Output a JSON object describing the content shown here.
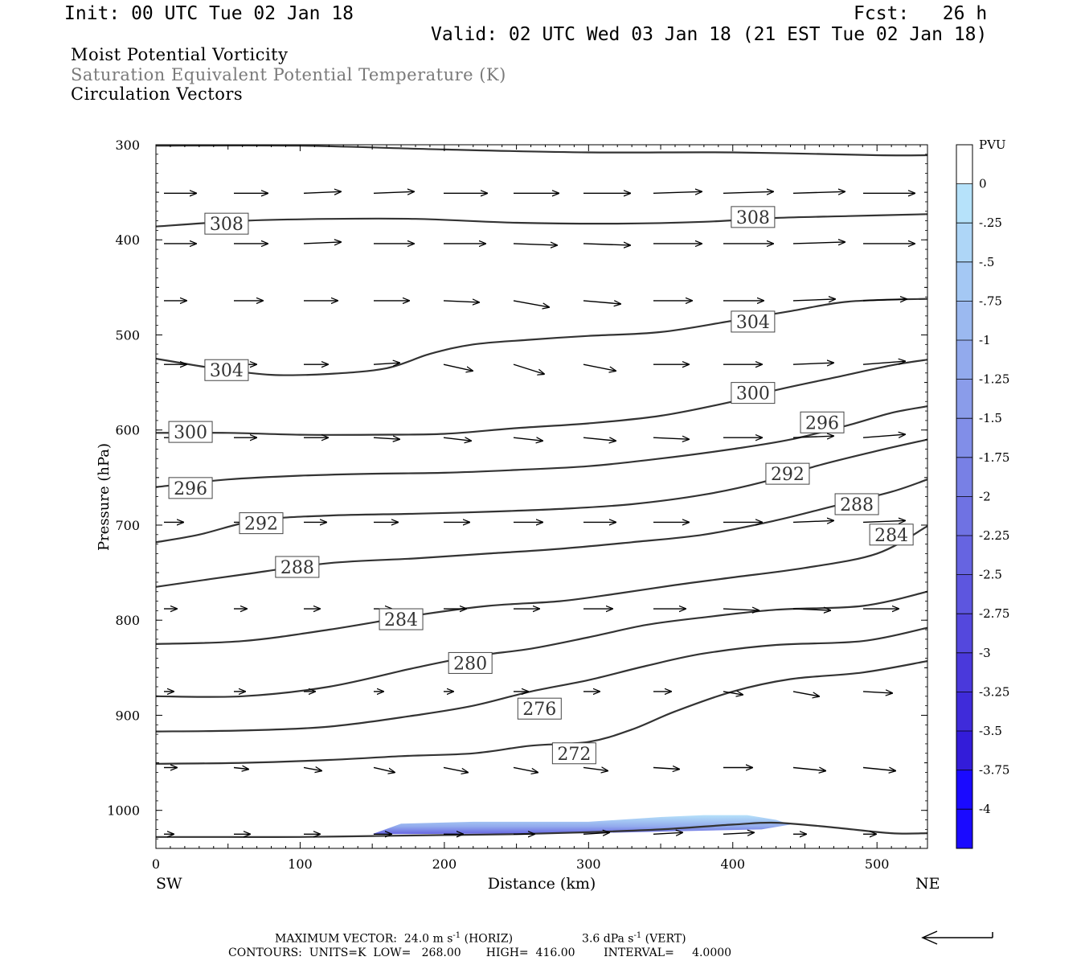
{
  "header": {
    "init": "Init: 00 UTC Tue 02 Jan 18",
    "fcst": "Fcst:   26 h",
    "valid": "Valid: 02 UTC Wed 03 Jan 18 (21 EST Tue 02 Jan 18)",
    "title1": "Moist Potential Vorticity",
    "title2": "Saturation Equivalent Potential Temperature (K)",
    "title3": "Circulation Vectors"
  },
  "footer": {
    "max_vector": "MAXIMUM VECTOR:  24.0 m s",
    "max_vector_sup": "-1",
    "max_vector_h": " (HORIZ)",
    "max_vector_v": "3.6 dPa s",
    "max_vector_v_sup": "-1",
    "max_vector_v2": " (VERT)",
    "contours": "CONTOURS:  UNITS=K  LOW=   268.00       HIGH=  416.00        INTERVAL=     4.0000"
  },
  "chart_data": {
    "type": "cross-section",
    "xlabel": "Distance (km)",
    "ylabel": "Pressure (hPa)",
    "xlim": [
      0,
      535
    ],
    "ylim": [
      300,
      1040
    ],
    "x_ticks": [
      0,
      100,
      200,
      300,
      400,
      500
    ],
    "y_ticks": [
      300,
      400,
      500,
      600,
      700,
      800,
      900,
      1000
    ],
    "x_end_labels": {
      "left": "SW",
      "right": "NE"
    },
    "colorbar": {
      "unit": "PVU",
      "labels": [
        "0",
        "-.25",
        "-.5",
        "-.75",
        "-1",
        "-1.25",
        "-1.5",
        "-1.75",
        "-2",
        "-2.25",
        "-2.5",
        "-2.75",
        "-3",
        "-3.25",
        "-3.5",
        "-3.75",
        "-4"
      ],
      "colors": [
        "#ffffff",
        "#b6e2fa",
        "#aed6f7",
        "#a4c8f4",
        "#9bb9f0",
        "#92aaed",
        "#8a9cea",
        "#818ee8",
        "#7880e5",
        "#6f72e3",
        "#6664e1",
        "#5d56df",
        "#5448dd",
        "#4a39db",
        "#3f2bda",
        "#331cd9",
        "#1a0aff"
      ]
    },
    "isentropes": [
      {
        "value": 268,
        "points": [
          [
            0,
            1028
          ],
          [
            50,
            1028
          ],
          [
            100,
            1028
          ],
          [
            150,
            1027
          ],
          [
            200,
            1026
          ],
          [
            250,
            1025
          ],
          [
            300,
            1023
          ],
          [
            350,
            1020
          ],
          [
            400,
            1015
          ],
          [
            430,
            1013
          ],
          [
            470,
            1018
          ],
          [
            510,
            1024
          ],
          [
            535,
            1024
          ]
        ]
      },
      {
        "value": 272,
        "points": [
          [
            0,
            951
          ],
          [
            60,
            950
          ],
          [
            120,
            947
          ],
          [
            170,
            943
          ],
          [
            220,
            940
          ],
          [
            260,
            932
          ],
          [
            300,
            928
          ],
          [
            330,
            915
          ],
          [
            360,
            896
          ],
          [
            400,
            875
          ],
          [
            440,
            862
          ],
          [
            490,
            855
          ],
          [
            535,
            843
          ]
        ]
      },
      {
        "value": 276,
        "points": [
          [
            0,
            917
          ],
          [
            60,
            916
          ],
          [
            120,
            912
          ],
          [
            180,
            900
          ],
          [
            220,
            890
          ],
          [
            260,
            875
          ],
          [
            300,
            863
          ],
          [
            340,
            848
          ],
          [
            380,
            835
          ],
          [
            430,
            826
          ],
          [
            490,
            822
          ],
          [
            535,
            808
          ]
        ]
      },
      {
        "value": 280,
        "points": [
          [
            0,
            880
          ],
          [
            60,
            880
          ],
          [
            120,
            870
          ],
          [
            180,
            850
          ],
          [
            220,
            838
          ],
          [
            260,
            830
          ],
          [
            300,
            818
          ],
          [
            340,
            805
          ],
          [
            380,
            797
          ],
          [
            430,
            789
          ],
          [
            490,
            785
          ],
          [
            535,
            770
          ]
        ]
      },
      {
        "value": 284,
        "points": [
          [
            0,
            825
          ],
          [
            60,
            822
          ],
          [
            120,
            810
          ],
          [
            180,
            795
          ],
          [
            230,
            785
          ],
          [
            280,
            780
          ],
          [
            320,
            772
          ],
          [
            360,
            763
          ],
          [
            400,
            755
          ],
          [
            450,
            745
          ],
          [
            500,
            730
          ],
          [
            535,
            701
          ]
        ]
      },
      {
        "value": 288,
        "points": [
          [
            0,
            765
          ],
          [
            60,
            752
          ],
          [
            120,
            740
          ],
          [
            180,
            735
          ],
          [
            230,
            730
          ],
          [
            280,
            725
          ],
          [
            330,
            718
          ],
          [
            380,
            710
          ],
          [
            430,
            695
          ],
          [
            470,
            680
          ],
          [
            510,
            665
          ],
          [
            535,
            652
          ]
        ]
      },
      {
        "value": 292,
        "points": [
          [
            0,
            718
          ],
          [
            30,
            710
          ],
          [
            70,
            695
          ],
          [
            120,
            690
          ],
          [
            180,
            688
          ],
          [
            230,
            686
          ],
          [
            280,
            683
          ],
          [
            330,
            678
          ],
          [
            380,
            668
          ],
          [
            420,
            655
          ],
          [
            460,
            637
          ],
          [
            500,
            622
          ],
          [
            535,
            610
          ]
        ]
      },
      {
        "value": 296,
        "points": [
          [
            0,
            660
          ],
          [
            50,
            652
          ],
          [
            100,
            648
          ],
          [
            150,
            646
          ],
          [
            200,
            645
          ],
          [
            250,
            642
          ],
          [
            300,
            638
          ],
          [
            350,
            630
          ],
          [
            400,
            620
          ],
          [
            440,
            610
          ],
          [
            480,
            595
          ],
          [
            510,
            582
          ],
          [
            535,
            575
          ]
        ]
      },
      {
        "value": 300,
        "points": [
          [
            0,
            603
          ],
          [
            50,
            603
          ],
          [
            100,
            605
          ],
          [
            150,
            605
          ],
          [
            200,
            604
          ],
          [
            250,
            598
          ],
          [
            300,
            593
          ],
          [
            350,
            585
          ],
          [
            400,
            570
          ],
          [
            430,
            558
          ],
          [
            470,
            545
          ],
          [
            510,
            532
          ],
          [
            535,
            526
          ]
        ]
      },
      {
        "value": 304,
        "points": [
          [
            0,
            525
          ],
          [
            40,
            535
          ],
          [
            80,
            542
          ],
          [
            120,
            541
          ],
          [
            160,
            535
          ],
          [
            190,
            520
          ],
          [
            220,
            510
          ],
          [
            260,
            505
          ],
          [
            300,
            501
          ],
          [
            350,
            497
          ],
          [
            400,
            485
          ],
          [
            440,
            475
          ],
          [
            480,
            465
          ],
          [
            535,
            462
          ]
        ]
      },
      {
        "value": 308,
        "points": [
          [
            0,
            386
          ],
          [
            60,
            380
          ],
          [
            120,
            378
          ],
          [
            180,
            378
          ],
          [
            250,
            382
          ],
          [
            320,
            383
          ],
          [
            380,
            381
          ],
          [
            430,
            377
          ],
          [
            480,
            375
          ],
          [
            535,
            373
          ]
        ]
      },
      {
        "value": 312,
        "points": [
          [
            0,
            301
          ],
          [
            100,
            301
          ],
          [
            200,
            305
          ],
          [
            300,
            308
          ],
          [
            400,
            308
          ],
          [
            500,
            311
          ],
          [
            535,
            311
          ]
        ]
      }
    ],
    "contour_labels": [
      {
        "text": "308",
        "x": 49,
        "p": 383
      },
      {
        "text": "308",
        "x": 414,
        "p": 376
      },
      {
        "text": "304",
        "x": 49,
        "p": 537
      },
      {
        "text": "304",
        "x": 414,
        "p": 486
      },
      {
        "text": "300",
        "x": 24,
        "p": 602
      },
      {
        "text": "300",
        "x": 414,
        "p": 561
      },
      {
        "text": "296",
        "x": 24,
        "p": 661
      },
      {
        "text": "296",
        "x": 462,
        "p": 592
      },
      {
        "text": "292",
        "x": 73,
        "p": 698
      },
      {
        "text": "292",
        "x": 438,
        "p": 646
      },
      {
        "text": "288",
        "x": 98,
        "p": 744
      },
      {
        "text": "288",
        "x": 486,
        "p": 678
      },
      {
        "text": "284",
        "x": 170,
        "p": 799
      },
      {
        "text": "284",
        "x": 510,
        "p": 710
      },
      {
        "text": "280",
        "x": 218,
        "p": 845
      },
      {
        "text": "276",
        "x": 266,
        "p": 893
      },
      {
        "text": "272",
        "x": 290,
        "p": 940
      }
    ],
    "vector_rows": [
      {
        "p": 351,
        "u": [
          1.0,
          1.05,
          1.15,
          1.25,
          1.35,
          1.4,
          1.45,
          1.5,
          1.55,
          1.6,
          1.6
        ],
        "w": [
          0,
          0,
          0.05,
          0.05,
          0,
          0,
          0,
          0.05,
          0.05,
          0.05,
          0
        ]
      },
      {
        "p": 404,
        "u": [
          1.0,
          1.05,
          1.15,
          1.25,
          1.3,
          1.35,
          1.45,
          1.5,
          1.55,
          1.6,
          1.6
        ],
        "w": [
          0,
          0,
          0.05,
          0,
          0,
          -0.05,
          -0.05,
          0,
          0,
          0.05,
          0
        ]
      },
      {
        "p": 464,
        "u": [
          0.7,
          0.9,
          1.05,
          1.1,
          1.1,
          1.1,
          1.15,
          1.2,
          1.25,
          1.3,
          1.35
        ],
        "w": [
          0,
          0,
          0,
          0,
          -0.05,
          -0.2,
          -0.1,
          0,
          0,
          0.05,
          0.05
        ]
      },
      {
        "p": 531,
        "u": [
          0.7,
          0.7,
          0.75,
          0.8,
          0.9,
          0.95,
          1.0,
          1.1,
          1.2,
          1.25,
          1.3
        ],
        "w": [
          0,
          0,
          0,
          0.05,
          -0.2,
          -0.3,
          -0.2,
          0,
          0,
          0.05,
          0.1
        ]
      },
      {
        "p": 608,
        "u": [
          0.7,
          0.7,
          0.75,
          0.8,
          0.85,
          0.9,
          1.0,
          1.1,
          1.2,
          1.25,
          1.3
        ],
        "w": [
          0,
          0,
          0,
          -0.05,
          -0.1,
          -0.1,
          -0.1,
          -0.05,
          0,
          0.05,
          0.1
        ]
      },
      {
        "p": 697,
        "u": [
          0.6,
          0.6,
          0.7,
          0.75,
          0.8,
          0.9,
          1.0,
          1.1,
          1.2,
          1.25,
          1.3
        ],
        "w": [
          0,
          0,
          0,
          0,
          0,
          0,
          0,
          0,
          0,
          0.05,
          0.05
        ]
      },
      {
        "p": 788,
        "u": [
          0.4,
          0.4,
          0.5,
          0.55,
          0.7,
          0.8,
          0.9,
          1.0,
          1.1,
          1.15,
          1.1
        ],
        "w": [
          0,
          0,
          0,
          0,
          0,
          0,
          0,
          0,
          -0.05,
          -0.05,
          0
        ]
      },
      {
        "p": 875,
        "u": [
          0.3,
          0.35,
          0.35,
          0.3,
          0.3,
          0.45,
          0.5,
          0.55,
          0.6,
          0.8,
          0.9
        ],
        "w": [
          0,
          0,
          0,
          0,
          0,
          0,
          0,
          0,
          -0.1,
          -0.15,
          -0.05
        ]
      },
      {
        "p": 955,
        "u": [
          0.4,
          0.45,
          0.55,
          0.65,
          0.75,
          0.75,
          0.75,
          0.8,
          0.9,
          1.0,
          1.0
        ],
        "w": [
          0,
          -0.05,
          -0.1,
          -0.15,
          -0.15,
          -0.15,
          -0.1,
          -0.05,
          0,
          -0.1,
          -0.1
        ]
      },
      {
        "p": 1025,
        "u": [
          0.3,
          0.5,
          0.5,
          0.55,
          0.6,
          0.65,
          0.8,
          0.9,
          0.95,
          0.4,
          0.4
        ],
        "w": [
          0,
          0,
          0,
          0,
          0,
          0,
          0.05,
          0.05,
          0.05,
          0,
          0
        ]
      }
    ],
    "mpv_patch": [
      [
        150,
        1025
      ],
      [
        170,
        1014
      ],
      [
        220,
        1012
      ],
      [
        300,
        1012
      ],
      [
        350,
        1007
      ],
      [
        380,
        1005
      ],
      [
        410,
        1005
      ],
      [
        430,
        1010
      ],
      [
        440,
        1015
      ],
      [
        420,
        1020
      ],
      [
        300,
        1024
      ],
      [
        150,
        1025
      ]
    ]
  }
}
